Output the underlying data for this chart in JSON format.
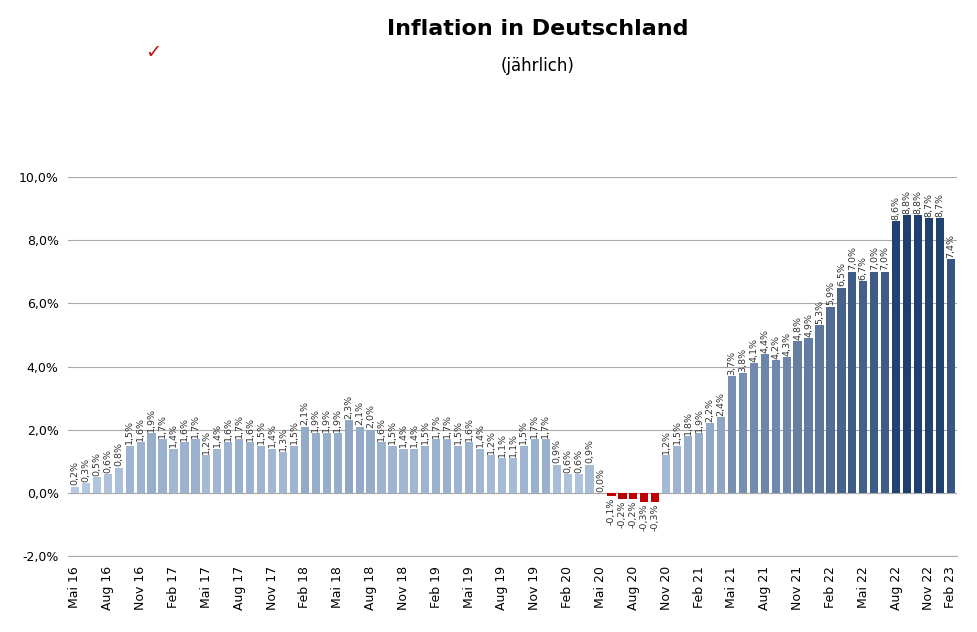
{
  "title": "Inflation in Deutschland",
  "subtitle": "(jährlich)",
  "tick_labels": [
    "Mai 16",
    "Aug 16",
    "Nov 16",
    "Feb 17",
    "Mai 17",
    "Aug 17",
    "Nov 17",
    "Feb 18",
    "Mai 18",
    "Aug 18",
    "Nov 18",
    "Feb 19",
    "Mai 19",
    "Aug 19",
    "Nov 19",
    "Feb 20",
    "Mai 20",
    "Aug 20",
    "Nov 20",
    "Feb 21",
    "Mai 21",
    "Aug 21",
    "Nov 21",
    "Feb 22",
    "Mai 22",
    "Aug 22",
    "Nov 22",
    "Feb 23"
  ],
  "values": [
    0.2,
    0.3,
    0.5,
    0.6,
    0.8,
    1.5,
    1.6,
    1.9,
    1.7,
    1.4,
    1.6,
    1.7,
    1.2,
    1.4,
    1.6,
    1.7,
    1.6,
    1.5,
    1.4,
    1.3,
    1.5,
    2.1,
    1.9,
    1.9,
    1.9,
    2.3,
    2.1,
    2.0,
    1.6,
    1.5,
    1.4,
    1.4,
    1.5,
    1.7,
    1.7,
    1.5,
    1.6,
    1.4,
    1.2,
    1.1,
    1.1,
    1.5,
    1.7,
    1.7,
    0.9,
    0.6,
    0.6,
    0.9,
    0.0,
    -0.1,
    -0.2,
    -0.2,
    -0.3,
    -0.3,
    1.2,
    1.5,
    1.8,
    1.9,
    2.2,
    2.4,
    3.7,
    3.8,
    4.1,
    4.4,
    4.2,
    4.3,
    4.8,
    4.9,
    5.3,
    5.9,
    6.5,
    7.0,
    6.7,
    7.0,
    7.0,
    8.6,
    8.8,
    8.8,
    8.7,
    8.7,
    7.4
  ],
  "bar_color_positive_dark": "#1f3f6e",
  "bar_color_positive_mid": "#2f5597",
  "bar_color_positive_light": "#b8cce4",
  "bar_color_negative": "#c00000",
  "ylim": [
    -2.0,
    10.0
  ],
  "yticks": [
    -2.0,
    0.0,
    2.0,
    4.0,
    6.0,
    8.0,
    10.0
  ],
  "background_color": "#ffffff",
  "grid_color": "#aaaaaa",
  "title_fontsize": 16,
  "subtitle_fontsize": 12,
  "label_fontsize": 6.8,
  "tick_fontsize": 9
}
